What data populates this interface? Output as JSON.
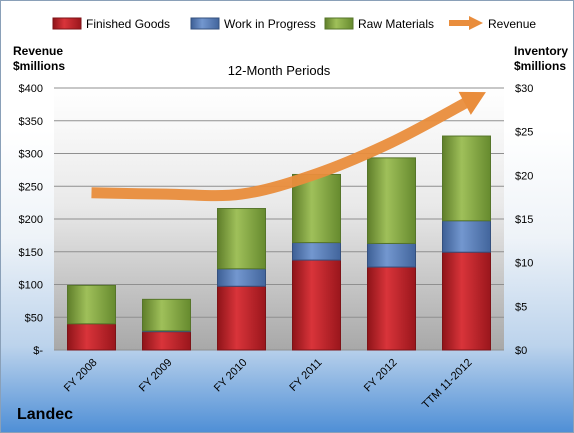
{
  "chart_data": {
    "type": "bar",
    "stacked": true,
    "title": "12-Month Periods",
    "company": "Landec",
    "left_axis": {
      "label_line1": "Revenue",
      "label_line2": "$millions",
      "ylim": [
        0,
        400
      ],
      "ticks": [
        0,
        50,
        100,
        150,
        200,
        250,
        300,
        350,
        400
      ],
      "tick_labels": [
        "$-",
        "$50",
        "$100",
        "$150",
        "$200",
        "$250",
        "$300",
        "$350",
        "$400"
      ]
    },
    "right_axis": {
      "label_line1": "Inventory",
      "label_line2": "$millions",
      "ylim": [
        0,
        30
      ],
      "ticks": [
        0,
        5,
        10,
        15,
        20,
        25,
        30
      ],
      "tick_labels": [
        "$0",
        "$5",
        "$10",
        "$15",
        "$20",
        "$25",
        "$30"
      ]
    },
    "categories": [
      "FY 2008",
      "FY 2009",
      "FY 2010",
      "FY 2011",
      "FY 2012",
      "TTM 11-2012"
    ],
    "series": [
      {
        "name": "Finished Goods",
        "axis": "right",
        "color": "#c0262c",
        "values": [
          3.0,
          2.1,
          7.3,
          10.3,
          9.5,
          11.2
        ]
      },
      {
        "name": "Work in Progress",
        "axis": "right",
        "color": "#5b82c0",
        "values": [
          0.0,
          0.1,
          2.0,
          2.0,
          2.7,
          3.6
        ]
      },
      {
        "name": "Raw Materials",
        "axis": "right",
        "color": "#8db04a",
        "values": [
          4.4,
          3.6,
          6.9,
          7.8,
          9.8,
          9.7
        ]
      },
      {
        "name": "Revenue",
        "axis": "left",
        "type": "line",
        "color": "#e98d3c",
        "values": [
          240,
          238,
          238,
          269,
          317,
          378
        ]
      }
    ],
    "legend_position": "top",
    "grid": "horizontal"
  }
}
